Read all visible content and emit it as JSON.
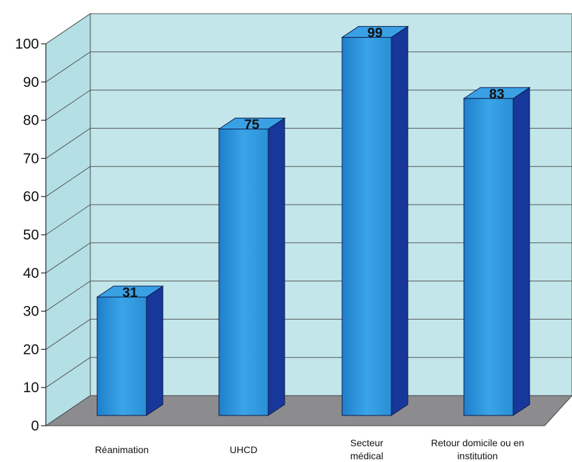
{
  "chart_data": {
    "type": "bar",
    "title": "",
    "xlabel": "",
    "ylabel": "",
    "categories": [
      "Réanimation",
      "UHCD",
      "Secteur\nmédical",
      "Retour domicile ou en\ninstitution"
    ],
    "values": [
      31,
      75,
      99,
      83
    ],
    "data_labels": [
      "31",
      "75",
      "99",
      "83"
    ],
    "ylim": [
      0,
      100
    ],
    "yticks": [
      0,
      10,
      20,
      30,
      40,
      50,
      60,
      70,
      80,
      90,
      100
    ],
    "grid": true,
    "legend": "none",
    "colors": {
      "bar_front": "#2a8fd6",
      "bar_top": "#3aa0e4",
      "bar_side": "#17379a",
      "back_wall": "#c2e6ea",
      "floor": "#8c8c8e",
      "gridline": "#555555"
    }
  }
}
